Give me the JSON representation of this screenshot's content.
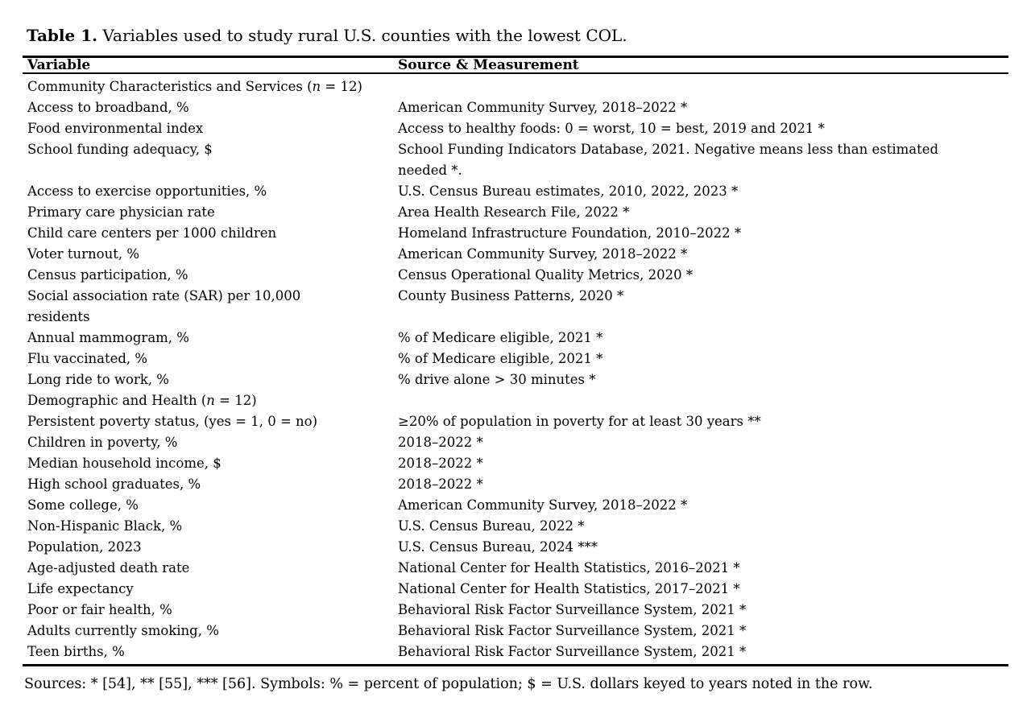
{
  "page": {
    "background_color": "#ffffff",
    "text_color": "#000000"
  },
  "title": {
    "label": "Table 1.",
    "text": " Variables used to study rural U.S. counties with the lowest COL."
  },
  "table": {
    "headers": [
      "Variable",
      "Source & Measurement"
    ],
    "rows": [
      {
        "type": "section",
        "pre": "Community Characteristics and Services (",
        "n": "n",
        "post": " = 12)"
      },
      {
        "type": "data",
        "variable": "Access to broadband, %",
        "source": "American Community Survey, 2018–2022 *"
      },
      {
        "type": "data",
        "variable": "Food environmental index",
        "source": "Access to healthy foods: 0 = worst, 10 = best, 2019 and 2021 *"
      },
      {
        "type": "data",
        "variable": "School funding adequacy, $",
        "source": "School Funding Indicators Database, 2021. Negative means less than estimated\nneeded *."
      },
      {
        "type": "data",
        "variable": "Access to exercise opportunities, %",
        "source": "U.S. Census Bureau estimates, 2010, 2022, 2023 *"
      },
      {
        "type": "data",
        "variable": "Primary care physician rate",
        "source": "Area Health Research File, 2022 *"
      },
      {
        "type": "data",
        "variable": "Child care centers per 1000 children",
        "source": "Homeland Infrastructure Foundation, 2010–2022 *"
      },
      {
        "type": "data",
        "variable": "Voter turnout, %",
        "source": "American Community Survey, 2018–2022 *"
      },
      {
        "type": "data",
        "variable": "Census participation, %",
        "source": "Census Operational Quality Metrics, 2020 *"
      },
      {
        "type": "data",
        "variable": "Social association rate (SAR) per 10,000\nresidents",
        "source": "County Business Patterns, 2020 *"
      },
      {
        "type": "data",
        "variable": "Annual mammogram, %",
        "source": "% of Medicare eligible, 2021 *"
      },
      {
        "type": "data",
        "variable": "Flu vaccinated, %",
        "source": "% of Medicare eligible, 2021 *"
      },
      {
        "type": "data",
        "variable": "Long ride to work, %",
        "source": "% drive alone > 30 minutes *"
      },
      {
        "type": "section",
        "pre": "Demographic and Health (",
        "n": "n",
        "post": " = 12)"
      },
      {
        "type": "data",
        "variable": "Persistent poverty status, (yes = 1, 0 = no)",
        "source": "≥20% of population in poverty for at least 30 years **"
      },
      {
        "type": "data",
        "variable": "Children in poverty, %",
        "source": "2018–2022 *"
      },
      {
        "type": "data",
        "variable": "Median household income, $",
        "source": "2018–2022 *"
      },
      {
        "type": "data",
        "variable": "High school graduates, %",
        "source": "2018–2022 *"
      },
      {
        "type": "data",
        "variable": "Some college, %",
        "source": "American Community Survey, 2018–2022 *"
      },
      {
        "type": "data",
        "variable": "Non-Hispanic Black, %",
        "source": "U.S. Census Bureau, 2022 *"
      },
      {
        "type": "data",
        "variable": "Population, 2023",
        "source": "U.S. Census Bureau, 2024 ***"
      },
      {
        "type": "data",
        "variable": "Age-adjusted death rate",
        "source": "National Center for Health Statistics, 2016–2021 *"
      },
      {
        "type": "data",
        "variable": "Life expectancy",
        "source": "National Center for Health Statistics, 2017–2021 *"
      },
      {
        "type": "data",
        "variable": "Poor or fair health, %",
        "source": "Behavioral Risk Factor Surveillance System, 2021 *"
      },
      {
        "type": "data",
        "variable": "Adults currently smoking, %",
        "source": "Behavioral Risk Factor Surveillance System, 2021 *"
      },
      {
        "type": "data",
        "variable": "Teen births, %",
        "source": "Behavioral Risk Factor Surveillance System, 2021 *"
      }
    ]
  },
  "footnote": "Sources: * [54], ** [55], *** [56]. Symbols: % = percent of population; $ = U.S. dollars keyed to years noted in the row."
}
